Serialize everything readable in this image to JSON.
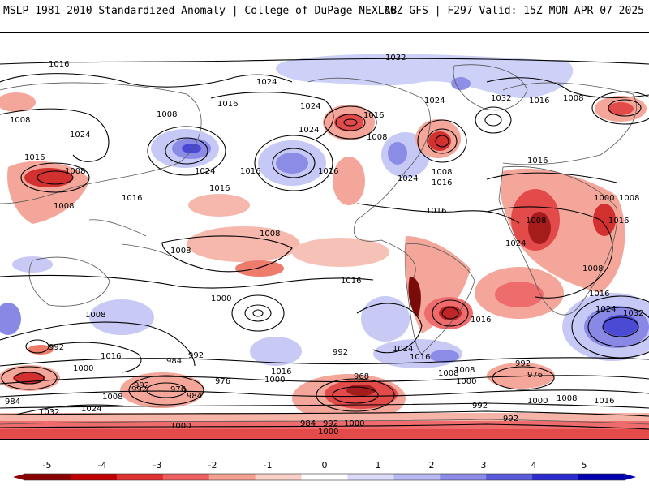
{
  "header": {
    "left_title": "MSLP 1981-2010 Standardized Anomaly | College of DuPage NEXLAB",
    "right_title": "06Z GFS | F297 Valid: 15Z MON APR 07 2025"
  },
  "map": {
    "projection": "global",
    "contour_color": "#000000",
    "coastline_color": "#555555",
    "background": "#ffffff",
    "isobar_labels": [
      "1016",
      "1032",
      "1024",
      "1024",
      "1016",
      "1024",
      "1032",
      "1016",
      "1008",
      "1008",
      "1016",
      "1008",
      "1024",
      "1016",
      "1008",
      "1024",
      "1016",
      "1024",
      "1016",
      "1008",
      "1016",
      "1024",
      "1008",
      "1016",
      "1000",
      "1008",
      "1016",
      "1016",
      "1008",
      "1008",
      "1016",
      "1016",
      "1008",
      "1008",
      "1024",
      "1016",
      "1000",
      "1008",
      "1032",
      "1024",
      "1016",
      "1008",
      "992",
      "984",
      "992",
      "1016",
      "1000",
      "992",
      "976",
      "992",
      "968",
      "984",
      "976",
      "1000",
      "1008",
      "1016",
      "992",
      "992",
      "1008",
      "1000",
      "992",
      "1000",
      "976",
      "1008",
      "1016",
      "1032",
      "1024",
      "984",
      "984",
      "992",
      "1000",
      "1000",
      "992",
      "1000",
      "1008",
      "1016",
      "1024",
      "1016"
    ]
  },
  "colorbar": {
    "ticks": [
      "-5",
      "-4",
      "-3",
      "-2",
      "-1",
      "0",
      "1",
      "2",
      "3",
      "4",
      "5"
    ],
    "colors": [
      "#8b0000",
      "#c00000",
      "#e03030",
      "#ee6060",
      "#f4a090",
      "#fbd0c8",
      "#ffffff",
      "#dcdcfa",
      "#b8b8f2",
      "#8c8ce8",
      "#5a5adc",
      "#2b2bd0",
      "#0000b0"
    ]
  }
}
